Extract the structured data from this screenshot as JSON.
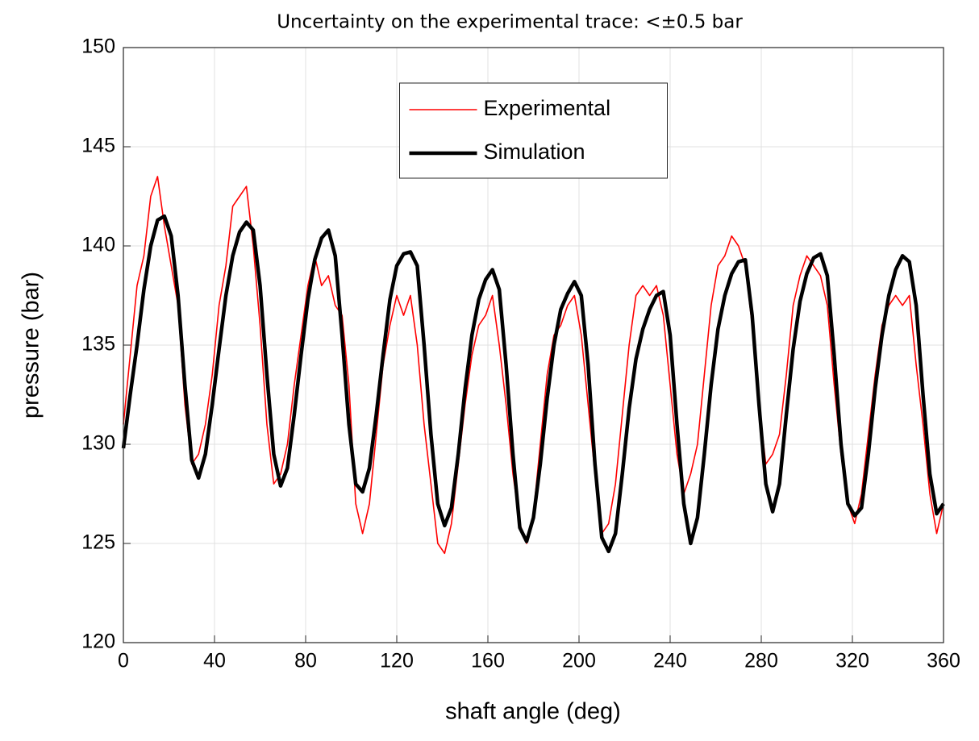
{
  "chart_data": {
    "type": "line",
    "title": "Uncertainty on the experimental trace: <±0.5 bar",
    "xlabel": "shaft angle (deg)",
    "ylabel": "pressure (bar)",
    "x": [
      0,
      3,
      6,
      9,
      12,
      15,
      18,
      21,
      24,
      27,
      30,
      33,
      36,
      39,
      42,
      45,
      48,
      51,
      54,
      57,
      60,
      63,
      66,
      69,
      72,
      75,
      78,
      81,
      84,
      87,
      90,
      93,
      96,
      99,
      102,
      105,
      108,
      111,
      114,
      117,
      120,
      123,
      126,
      129,
      132,
      135,
      138,
      141,
      144,
      147,
      150,
      153,
      156,
      159,
      162,
      165,
      168,
      171,
      174,
      177,
      180,
      183,
      186,
      189,
      192,
      195,
      198,
      201,
      204,
      207,
      210,
      213,
      216,
      219,
      222,
      225,
      228,
      231,
      234,
      237,
      240,
      243,
      246,
      249,
      252,
      255,
      258,
      261,
      264,
      267,
      270,
      273,
      276,
      279,
      282,
      285,
      288,
      291,
      294,
      297,
      300,
      303,
      306,
      309,
      312,
      315,
      318,
      321,
      324,
      327,
      330,
      333,
      336,
      339,
      342,
      345,
      348,
      351,
      354,
      357,
      360
    ],
    "series": [
      {
        "name": "Experimental",
        "color": "#ff0000",
        "values": [
          131,
          134.5,
          138,
          139.5,
          142.5,
          143.5,
          141,
          139,
          137,
          132,
          129,
          129.5,
          131,
          133.5,
          137,
          139,
          142,
          142.5,
          143,
          140,
          136,
          131,
          128,
          128.5,
          130,
          133,
          135.5,
          138,
          139.5,
          138,
          138.5,
          137,
          136.5,
          133,
          127,
          125.5,
          127,
          130.5,
          134,
          136,
          137.5,
          136.5,
          137.5,
          135,
          131,
          128,
          125,
          124.5,
          126,
          129,
          132,
          134.5,
          136,
          136.5,
          137.5,
          135,
          132,
          128.5,
          126,
          125,
          126.5,
          130,
          133.5,
          135.5,
          136,
          137,
          137.5,
          135.5,
          132,
          128.5,
          125.5,
          126,
          128,
          131.5,
          135,
          137.5,
          138,
          137.5,
          138,
          136.5,
          133,
          129.5,
          127.5,
          128.5,
          130,
          133.5,
          137,
          139,
          139.5,
          140.5,
          140,
          139,
          136,
          132,
          129,
          129.5,
          130.5,
          133.5,
          137,
          138.5,
          139.5,
          139,
          138.5,
          137,
          133,
          129.5,
          127,
          126,
          127.5,
          130.5,
          133.5,
          136,
          137,
          137.5,
          137,
          137.5,
          134,
          131,
          127.5,
          125.5,
          127
        ]
      },
      {
        "name": "Simulation",
        "color": "#000000",
        "values": [
          129.8,
          132.5,
          135,
          137.8,
          140,
          141.3,
          141.5,
          140.5,
          137.5,
          133,
          129.2,
          128.3,
          129.5,
          132,
          134.8,
          137.5,
          139.5,
          140.7,
          141.2,
          140.8,
          138,
          133.5,
          129.5,
          127.9,
          128.8,
          131.5,
          134.5,
          137.3,
          139.3,
          140.4,
          140.8,
          139.5,
          135.5,
          131,
          128,
          127.6,
          128.8,
          131.5,
          134.5,
          137.3,
          139,
          139.6,
          139.7,
          139,
          135,
          130.5,
          127,
          125.9,
          126.8,
          129.5,
          132.8,
          135.5,
          137.3,
          138.3,
          138.8,
          137.8,
          134,
          129.5,
          125.8,
          125.1,
          126.3,
          129,
          132.3,
          135,
          136.8,
          137.6,
          138.2,
          137.5,
          134,
          129,
          125.3,
          124.6,
          125.5,
          128.5,
          131.8,
          134.3,
          135.8,
          136.8,
          137.5,
          137.7,
          135.5,
          131,
          127,
          125,
          126.3,
          129.5,
          133,
          135.8,
          137.5,
          138.6,
          139.2,
          139.3,
          136.5,
          132,
          128,
          126.6,
          128,
          131.5,
          134.8,
          137.2,
          138.6,
          139.4,
          139.6,
          138.5,
          134.5,
          130,
          127,
          126.4,
          126.8,
          129.5,
          132.8,
          135.5,
          137.5,
          138.8,
          139.5,
          139.2,
          137,
          132.5,
          128.5,
          126.5,
          127
        ]
      }
    ],
    "xlim": [
      0,
      360
    ],
    "xticks": [
      0,
      40,
      80,
      120,
      160,
      200,
      240,
      280,
      320,
      360
    ],
    "ylim": [
      120,
      150
    ],
    "yticks": [
      120,
      125,
      130,
      135,
      140,
      145,
      150
    ],
    "grid": true,
    "legend": "north"
  }
}
